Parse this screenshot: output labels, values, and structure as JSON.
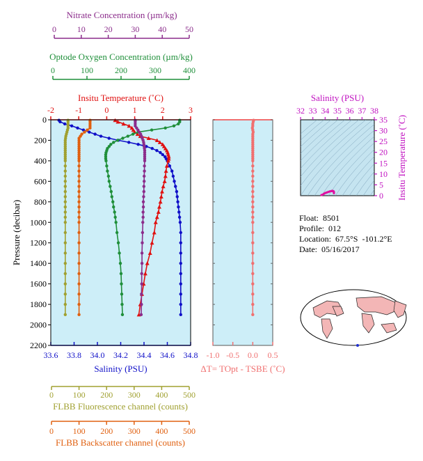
{
  "float_info": {
    "float": "Float:  8501",
    "profile": "Profile:  012",
    "location": "Location:  67.5°S  -101.2°E",
    "date": "Date:  05/16/2017"
  },
  "colors": {
    "nitrate": "#8b2c8b",
    "oxygen": "#1f8f3a",
    "temperature": "#e01010",
    "salinity": "#1010c8",
    "fluorescence": "#a0a030",
    "backscatter": "#e06010",
    "delta_t": "#f07070",
    "ts_axis": "#c010c0",
    "panel_bg": "#cdeef8",
    "ts_bg": "#c5e4f0"
  },
  "chart_data": [
    {
      "type": "line",
      "title": "",
      "ylabel": "Pressure (decibar)",
      "ylim": [
        2200,
        0
      ],
      "yticks": [
        "0",
        "200",
        "400",
        "600",
        "800",
        "1000",
        "1200",
        "1400",
        "1600",
        "1800",
        "2000",
        "2200"
      ],
      "axes": {
        "salinity": {
          "label": "Salinity (PSU)",
          "range": [
            33.6,
            34.8
          ],
          "ticks": [
            "33.6",
            "33.8",
            "34.0",
            "34.2",
            "34.4",
            "34.6",
            "34.8"
          ]
        },
        "temperature": {
          "label": "Insitu Temperature (˚C)",
          "range": [
            -2,
            3
          ],
          "ticks": [
            "-2",
            "-1",
            "0",
            "1",
            "2",
            "3"
          ]
        },
        "oxygen": {
          "label": "Optode Oxygen Concentration (µm/kg)",
          "range": [
            0,
            400
          ],
          "ticks": [
            "0",
            "100",
            "200",
            "300",
            "400"
          ]
        },
        "nitrate": {
          "label": "Nitrate Concentration (µm/kg)",
          "range": [
            0,
            50
          ],
          "ticks": [
            "0",
            "10",
            "20",
            "30",
            "40",
            "50"
          ]
        },
        "fluorescence": {
          "label": "FLBB Fluorescence channel (counts)",
          "range": [
            0,
            500
          ],
          "ticks": [
            "0",
            "100",
            "200",
            "300",
            "400",
            "500"
          ]
        },
        "backscatter": {
          "label": "FLBB Backscatter channel (counts)",
          "range": [
            0,
            500
          ],
          "ticks": [
            "0",
            "100",
            "200",
            "300",
            "400",
            "500"
          ]
        }
      },
      "pressure": [
        5,
        20,
        40,
        60,
        80,
        100,
        120,
        140,
        160,
        180,
        200,
        220,
        240,
        260,
        280,
        300,
        320,
        340,
        360,
        380,
        400,
        450,
        500,
        550,
        600,
        650,
        700,
        750,
        800,
        850,
        900,
        950,
        1000,
        1100,
        1200,
        1300,
        1400,
        1500,
        1600,
        1700,
        1800,
        1900
      ],
      "series": [
        {
          "key": "salinity",
          "axis": "salinity",
          "values": [
            33.67,
            33.68,
            33.72,
            33.78,
            33.83,
            33.88,
            33.93,
            33.98,
            34.03,
            34.1,
            34.18,
            34.27,
            34.35,
            34.42,
            34.47,
            34.51,
            34.54,
            34.56,
            34.58,
            34.59,
            34.6,
            34.62,
            34.64,
            34.65,
            34.66,
            34.67,
            34.68,
            34.685,
            34.69,
            34.695,
            34.7,
            34.705,
            34.71,
            34.715,
            34.715,
            34.715,
            34.715,
            34.715,
            34.715,
            34.715,
            34.715,
            34.715
          ]
        },
        {
          "key": "temperature",
          "axis": "temperature",
          "marker": "triangle",
          "values": [
            0.3,
            0.4,
            0.6,
            0.8,
            0.9,
            0.95,
            1.0,
            1.1,
            1.2,
            1.5,
            1.8,
            1.9,
            2.0,
            2.05,
            2.1,
            2.15,
            2.18,
            2.2,
            2.22,
            2.22,
            2.2,
            2.15,
            2.12,
            2.1,
            2.07,
            2.02,
            1.98,
            1.95,
            1.92,
            1.88,
            1.85,
            1.8,
            1.75,
            1.7,
            1.62,
            1.55,
            1.45,
            1.38,
            1.32,
            1.26,
            1.2,
            1.15
          ]
        },
        {
          "key": "oxygen",
          "axis": "oxygen",
          "values": [
            372,
            372,
            368,
            355,
            330,
            290,
            250,
            235,
            220,
            205,
            190,
            178,
            170,
            165,
            160,
            158,
            156,
            155,
            155,
            155,
            156,
            158,
            160,
            163,
            165,
            168,
            171,
            173,
            176,
            178,
            181,
            183,
            185,
            188,
            192,
            195,
            198,
            200,
            201,
            202,
            203,
            204
          ]
        },
        {
          "key": "nitrate",
          "axis": "nitrate",
          "values": [
            30,
            30,
            30,
            30,
            30.5,
            31,
            31.5,
            32,
            32.3,
            32.6,
            32.9,
            33.1,
            33.2,
            33.3,
            33.4,
            33.5,
            33.5,
            33.5,
            33.5,
            33.5,
            33.5,
            33.4,
            33.4,
            33.3,
            33.3,
            33.2,
            33.2,
            33.1,
            33.0,
            33.0,
            32.9,
            32.9,
            32.8,
            32.7,
            32.6,
            32.5,
            32.5,
            32.4,
            32.4,
            32.3,
            32.3,
            32.2
          ]
        },
        {
          "key": "fluorescence",
          "axis": "fluorescence",
          "values": [
            60,
            60,
            60,
            60,
            60,
            58,
            56,
            54,
            52,
            51,
            50,
            50,
            50,
            50,
            50,
            50,
            50,
            50,
            50,
            50,
            50,
            50,
            50,
            50,
            50,
            50,
            50,
            50,
            50,
            50,
            50,
            50,
            50,
            50,
            50,
            50,
            50,
            50,
            50,
            50,
            50,
            50
          ]
        },
        {
          "key": "backscatter",
          "axis": "backscatter",
          "values": [
            140,
            140,
            140,
            140,
            140,
            130,
            120,
            110,
            105,
            100,
            100,
            100,
            100,
            100,
            100,
            100,
            100,
            100,
            100,
            100,
            100,
            100,
            100,
            100,
            100,
            100,
            100,
            100,
            100,
            100,
            100,
            100,
            100,
            100,
            100,
            100,
            100,
            100,
            100,
            100,
            100,
            100
          ]
        }
      ]
    },
    {
      "type": "line",
      "title": "",
      "xlabel": "ΔT= TOpt - TSBE (˚C)",
      "xlim": [
        -1.0,
        0.5
      ],
      "xticks": [
        "-1.0",
        "-0.5",
        "0.0",
        "0.5"
      ],
      "ylim": [
        2200,
        0
      ],
      "pressure": [
        5,
        20,
        40,
        60,
        80,
        100,
        120,
        140,
        160,
        180,
        200,
        220,
        240,
        260,
        280,
        300,
        320,
        340,
        360,
        380,
        400,
        450,
        500,
        550,
        600,
        650,
        700,
        750,
        800,
        850,
        900,
        950,
        1000,
        1100,
        1200,
        1300,
        1400,
        1500,
        1600,
        1700,
        1800,
        1900
      ],
      "values": [
        0.02,
        0.01,
        0.0,
        0.0,
        -0.01,
        0.0,
        0.01,
        0.0,
        0.0,
        0.0,
        0.0,
        0.0,
        0.0,
        0.0,
        0.0,
        0.0,
        0.0,
        0.0,
        0.0,
        0.0,
        0.0,
        0.0,
        0.0,
        0.0,
        0.0,
        0.0,
        0.0,
        0.0,
        0.0,
        0.0,
        0.0,
        0.0,
        0.0,
        0.0,
        0.0,
        0.0,
        0.0,
        0.0,
        0.0,
        0.0,
        0.0,
        0.0
      ]
    },
    {
      "type": "scatter",
      "title": "",
      "xlabel": "Salinity (PSU)",
      "ylabel": "Insitu Temperature (˚C)",
      "xlim": [
        32,
        38
      ],
      "ylim": [
        0,
        35
      ],
      "xticks": [
        "32",
        "33",
        "34",
        "35",
        "36",
        "37",
        "38"
      ],
      "yticks": [
        "0",
        "5",
        "10",
        "15",
        "20",
        "25",
        "30",
        "35"
      ],
      "points": [
        [
          33.7,
          0.3
        ],
        [
          33.8,
          0.5
        ],
        [
          33.9,
          0.9
        ],
        [
          34.0,
          1.2
        ],
        [
          34.1,
          1.4
        ],
        [
          34.2,
          1.6
        ],
        [
          34.3,
          1.8
        ],
        [
          34.4,
          2.0
        ],
        [
          34.5,
          2.1
        ],
        [
          34.55,
          2.2
        ],
        [
          34.6,
          2.2
        ],
        [
          34.62,
          2.15
        ],
        [
          34.65,
          2.1
        ],
        [
          34.68,
          2.0
        ],
        [
          34.7,
          1.9
        ],
        [
          34.71,
          1.7
        ],
        [
          34.715,
          1.4
        ],
        [
          34.715,
          1.15
        ]
      ]
    }
  ]
}
